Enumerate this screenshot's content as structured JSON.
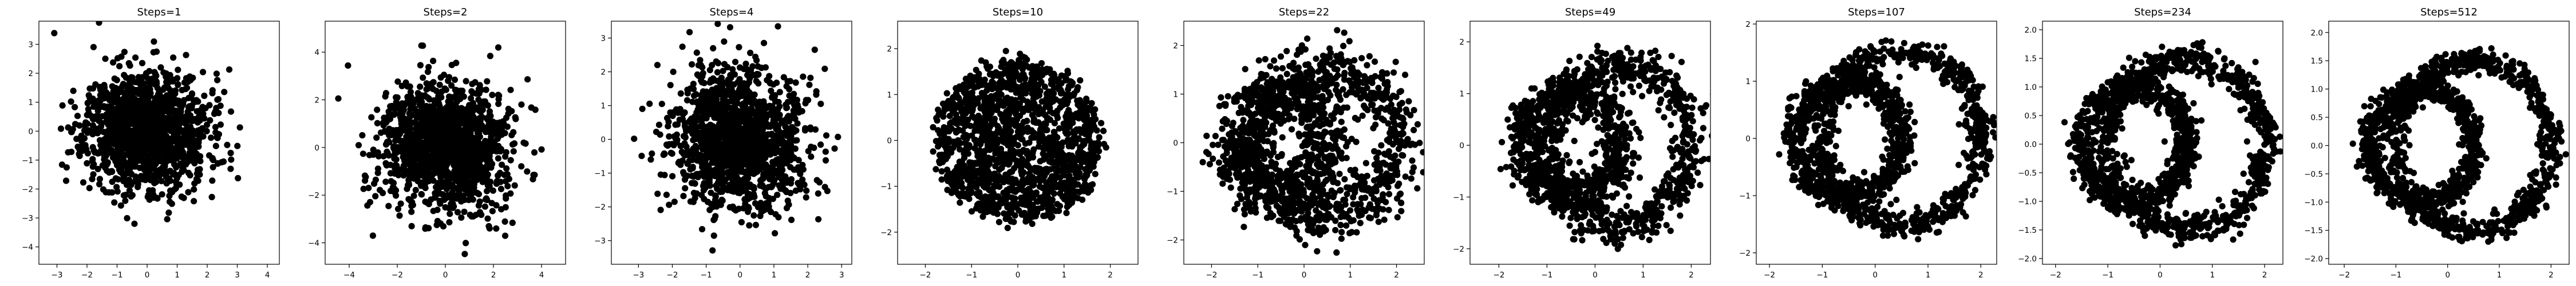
{
  "figure": {
    "point_color": "#000000",
    "axes_color": "#000000",
    "background": "#ffffff"
  },
  "chart_data": [
    {
      "type": "scatter",
      "title": "Steps=1",
      "shape": "gaussian",
      "approx_points": 1500,
      "spread": 1.0,
      "seed": 11,
      "xlim": [
        -3.6,
        4.4
      ],
      "ylim": [
        -4.6,
        3.8
      ],
      "xticks": [
        -3,
        -2,
        -1,
        0,
        1,
        2,
        3,
        4
      ],
      "yticks": [
        -4,
        -3,
        -2,
        -1,
        0,
        1,
        2,
        3
      ],
      "xlabel": "",
      "ylabel": "",
      "grid": false
    },
    {
      "type": "scatter",
      "title": "Steps=2",
      "shape": "gaussian",
      "approx_points": 1500,
      "spread": 1.3,
      "seed": 12,
      "xlim": [
        -5.0,
        5.0
      ],
      "ylim": [
        -4.9,
        5.3
      ],
      "xticks": [
        -4,
        -2,
        0,
        2,
        4
      ],
      "yticks": [
        -4,
        -2,
        0,
        2,
        4
      ],
      "xlabel": "",
      "ylabel": "",
      "grid": false
    },
    {
      "type": "scatter",
      "title": "Steps=4",
      "shape": "gaussian",
      "approx_points": 1500,
      "spread": 1.0,
      "seed": 13,
      "xlim": [
        -3.8,
        3.3
      ],
      "ylim": [
        -3.7,
        3.5
      ],
      "xticks": [
        -3,
        -2,
        -1,
        0,
        1,
        2,
        3
      ],
      "yticks": [
        -3,
        -2,
        -1,
        0,
        1,
        2,
        3
      ],
      "xlabel": "",
      "ylabel": "",
      "grid": false
    },
    {
      "type": "scatter",
      "title": "Steps=10",
      "shape": "disk",
      "approx_points": 1500,
      "radius": 1.8,
      "seed": 14,
      "xlim": [
        -2.6,
        2.6
      ],
      "ylim": [
        -2.7,
        2.6
      ],
      "xticks": [
        -2,
        -1,
        0,
        1,
        2
      ],
      "yticks": [
        -2,
        -1,
        0,
        1,
        2
      ],
      "xlabel": "",
      "ylabel": "",
      "grid": false
    },
    {
      "type": "scatter",
      "title": "Steps=22",
      "shape": "two-rings",
      "noise": 0.28,
      "approx_points": 1500,
      "seed": 15,
      "xlim": [
        -2.6,
        2.6
      ],
      "ylim": [
        -2.5,
        2.5
      ],
      "xticks": [
        -2,
        -1,
        0,
        1,
        2
      ],
      "yticks": [
        -2,
        -1,
        0,
        1,
        2
      ],
      "xlabel": "",
      "ylabel": "",
      "grid": false
    },
    {
      "type": "scatter",
      "title": "Steps=49",
      "shape": "two-rings",
      "noise": 0.2,
      "approx_points": 1500,
      "seed": 16,
      "xlim": [
        -2.6,
        2.4
      ],
      "ylim": [
        -2.3,
        2.4
      ],
      "xticks": [
        -2,
        -1,
        0,
        1,
        2
      ],
      "yticks": [
        -2,
        -1,
        0,
        1,
        2
      ],
      "xlabel": "",
      "ylabel": "",
      "grid": false
    },
    {
      "type": "scatter",
      "title": "Steps=107",
      "shape": "two-rings",
      "noise": 0.13,
      "approx_points": 1500,
      "seed": 17,
      "xlim": [
        -2.25,
        2.3
      ],
      "ylim": [
        -2.2,
        2.05
      ],
      "xticks": [
        -2,
        -1,
        0,
        1,
        2
      ],
      "yticks": [
        -2,
        -1,
        0,
        1,
        2
      ],
      "xlabel": "",
      "ylabel": "",
      "grid": false
    },
    {
      "type": "scatter",
      "title": "Steps=234",
      "shape": "two-rings",
      "noise": 0.13,
      "approx_points": 1500,
      "seed": 18,
      "xlim": [
        -2.25,
        2.35
      ],
      "ylim": [
        -2.1,
        2.15
      ],
      "xticks": [
        -2,
        -1,
        0,
        1,
        2
      ],
      "yticks": [
        -2.0,
        -1.5,
        -1.0,
        -0.5,
        0.0,
        0.5,
        1.0,
        1.5,
        2.0
      ],
      "ytick_labels": [
        "−2.0",
        "−1.5",
        "−1.0",
        "−0.5",
        "0.0",
        "0.5",
        "1.0",
        "1.5",
        "2.0"
      ],
      "xlabel": "",
      "ylabel": "",
      "grid": false
    },
    {
      "type": "scatter",
      "title": "Steps=512",
      "shape": "two-rings",
      "noise": 0.11,
      "approx_points": 1500,
      "seed": 19,
      "xlim": [
        -2.3,
        2.35
      ],
      "ylim": [
        -2.1,
        2.2
      ],
      "xticks": [
        -2,
        -1,
        0,
        1,
        2
      ],
      "yticks": [
        -2.0,
        -1.5,
        -1.0,
        -0.5,
        0.0,
        0.5,
        1.0,
        1.5,
        2.0
      ],
      "ytick_labels": [
        "−2.0",
        "−1.5",
        "−1.0",
        "−0.5",
        "0.0",
        "0.5",
        "1.0",
        "1.5",
        "2.0"
      ],
      "xlabel": "",
      "ylabel": "",
      "grid": false
    }
  ]
}
